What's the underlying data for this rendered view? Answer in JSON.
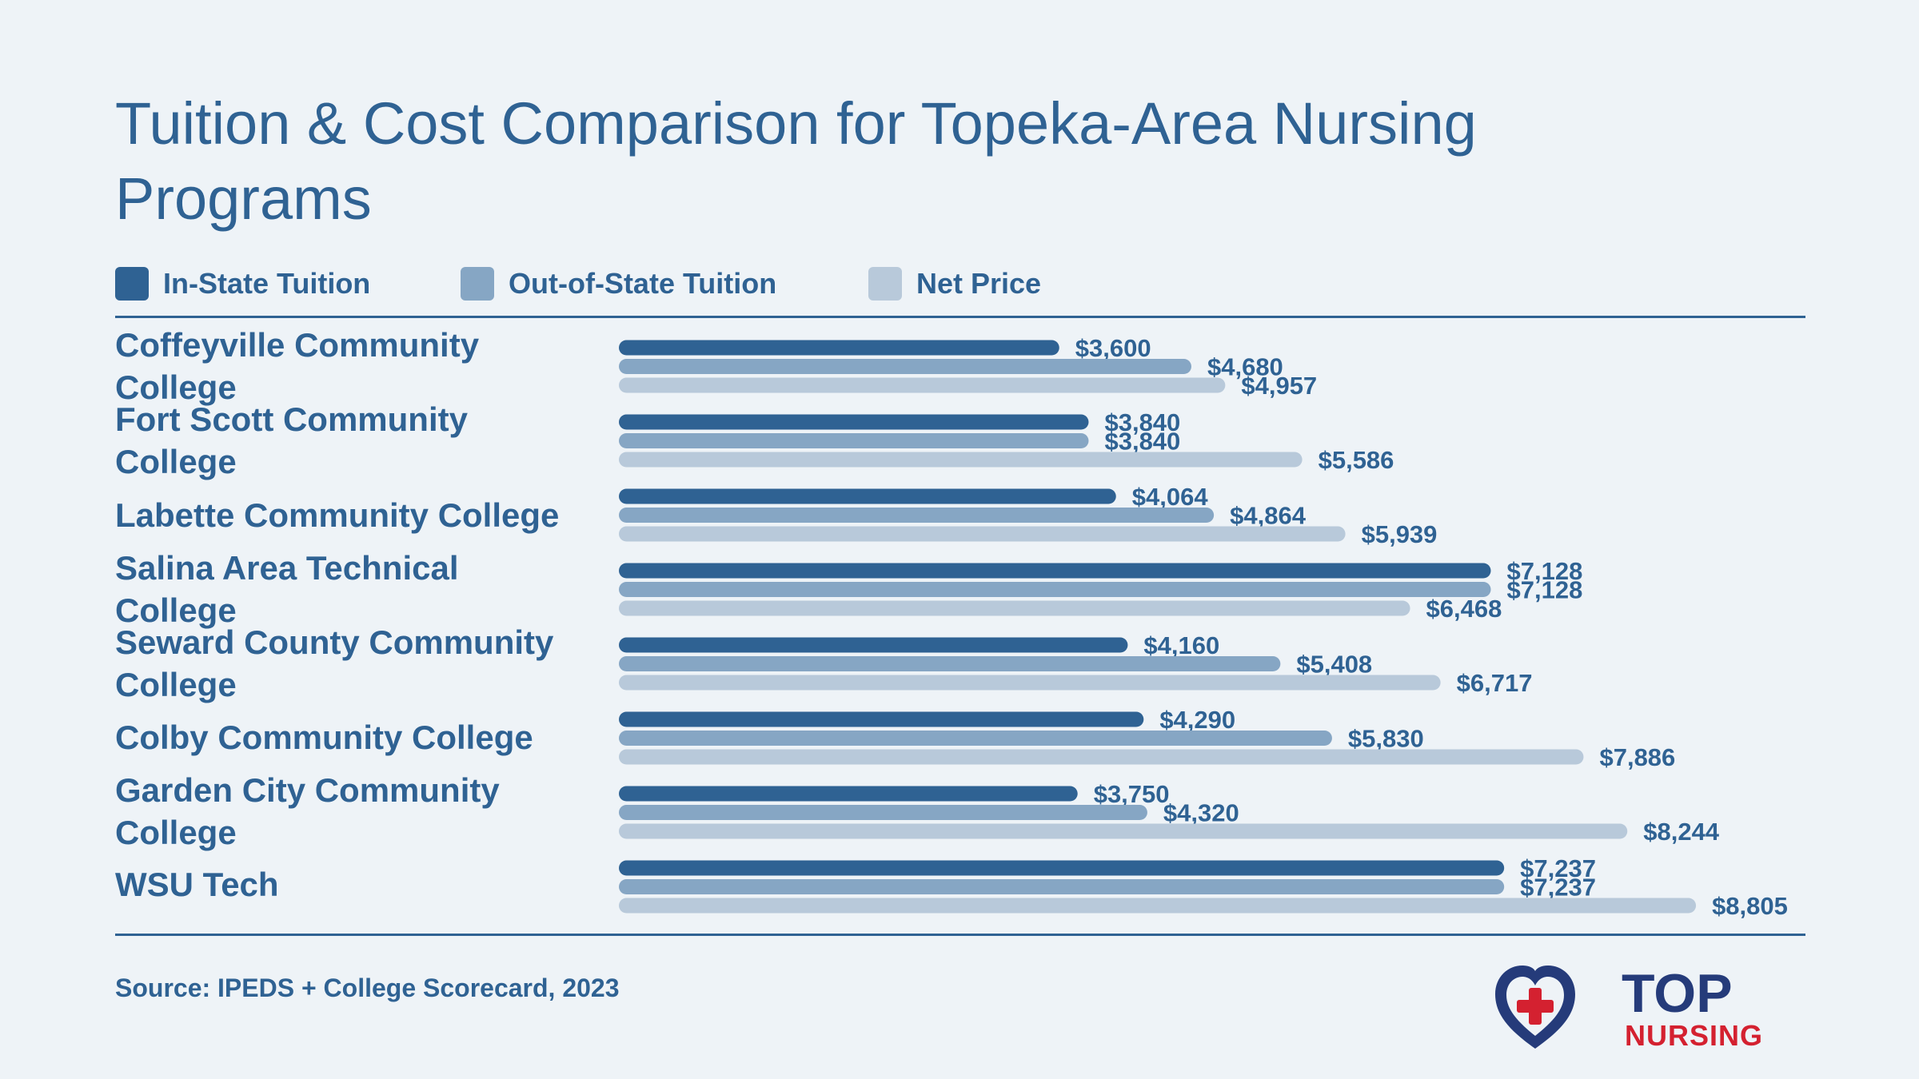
{
  "title": "Tuition & Cost Comparison for Topeka-Area Nursing Programs",
  "source": "Source: IPEDS + College Scorecard, 2023",
  "logo": {
    "top": "TOP",
    "bottom": "NURSING"
  },
  "colors": {
    "in_state": "#2f6293",
    "out_state": "#86a6c4",
    "net_price": "#b8c9da",
    "text": "#2f6293",
    "logo_navy": "#253b7a",
    "logo_red": "#d42130"
  },
  "chart_data": {
    "type": "bar",
    "orientation": "horizontal",
    "title": "Tuition & Cost Comparison for Topeka-Area Nursing Programs",
    "categories": [
      "Coffeyville Community College",
      "Fort Scott Community College",
      "Labette Community College",
      "Salina Area Technical College",
      "Seward County Community College",
      "Colby Community College",
      "Garden City Community College",
      "WSU Tech"
    ],
    "series": [
      {
        "name": "In-State Tuition",
        "values": [
          3600,
          3840,
          4064,
          7128,
          4160,
          4290,
          3750,
          7237
        ]
      },
      {
        "name": "Out-of-State Tuition",
        "values": [
          4680,
          3840,
          4864,
          7128,
          5408,
          5830,
          4320,
          7237
        ]
      },
      {
        "name": "Net Price",
        "values": [
          4957,
          5586,
          5939,
          6468,
          6717,
          7886,
          8244,
          8805
        ]
      }
    ],
    "value_labels": [
      [
        "$3,600",
        "$4,680",
        "$4,957"
      ],
      [
        "$3,840",
        "$3,840",
        "$5,586"
      ],
      [
        "$4,064",
        "$4,864",
        "$5,939"
      ],
      [
        "$7,128",
        "$7,128",
        "$6,468"
      ],
      [
        "$4,160",
        "$5,408",
        "$6,717"
      ],
      [
        "$4,290",
        "$5,830",
        "$7,886"
      ],
      [
        "$3,750",
        "$4,320",
        "$8,244"
      ],
      [
        "$7,237",
        "$7,237",
        "$8,805"
      ]
    ],
    "xlim": [
      0,
      9700
    ],
    "legend_position": "top-left",
    "grid": false
  }
}
